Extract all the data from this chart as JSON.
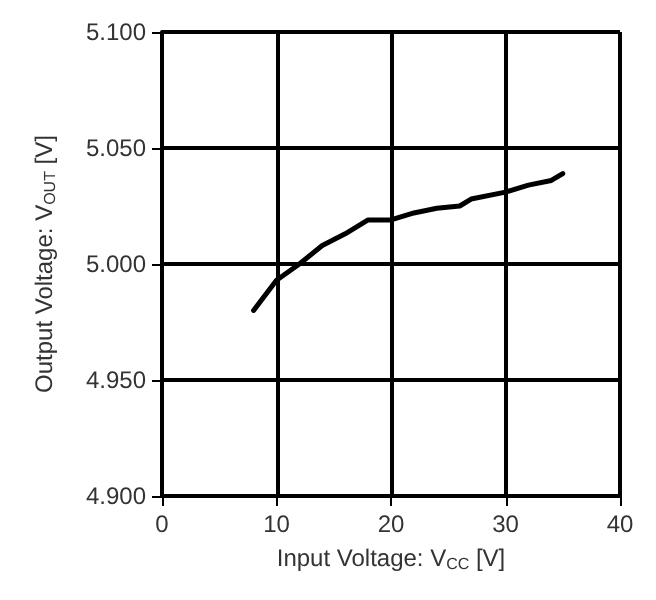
{
  "chart_data": {
    "type": "line",
    "xlabel": "Input Voltage: V$_{CC}$ [V]",
    "ylabel": "Output Voltage: V$_{OUT}$ [V]",
    "xlim": [
      0,
      40
    ],
    "xticks": [
      0,
      10,
      20,
      30,
      40
    ],
    "ylim": [
      4.9,
      5.1
    ],
    "yticks": [
      {
        "value": 4.9,
        "label": "4.900"
      },
      {
        "value": 4.95,
        "label": "4.950"
      },
      {
        "value": 5.0,
        "label": "5.000"
      },
      {
        "value": 5.05,
        "label": "5.050"
      },
      {
        "value": 5.1,
        "label": "5.100"
      }
    ],
    "grid": true,
    "marker": "none",
    "line_style": "solid",
    "series": [
      {
        "color": "#000000",
        "x": [
          8,
          10,
          12,
          14,
          16,
          18,
          20,
          22,
          24,
          26,
          27,
          30,
          32,
          34,
          35
        ],
        "values": [
          4.98,
          4.993,
          5.0,
          5.008,
          5.013,
          5.019,
          5.019,
          5.022,
          5.024,
          5.025,
          5.028,
          5.031,
          5.034,
          5.036,
          5.039
        ]
      }
    ]
  }
}
